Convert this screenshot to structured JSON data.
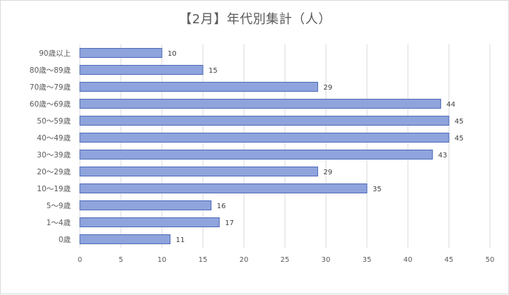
{
  "chart_data": {
    "type": "bar",
    "orientation": "horizontal",
    "title": "【2月】年代別集計（人）",
    "categories": [
      "90歳以上",
      "80歳～89歳",
      "70歳～79歳",
      "60歳～69歳",
      "50～59歳",
      "40～49歳",
      "30～39歳",
      "20～29歳",
      "10～19歳",
      "5～9歳",
      "1～4歳",
      "0歳"
    ],
    "values": [
      10,
      15,
      29,
      44,
      45,
      45,
      43,
      29,
      35,
      16,
      17,
      11
    ],
    "xlim": [
      0,
      50
    ],
    "xticks": [
      0,
      5,
      10,
      15,
      20,
      25,
      30,
      35,
      40,
      45,
      50
    ],
    "xlabel": "",
    "ylabel": "",
    "grid": "vertical",
    "legend": "none",
    "data_labels": true,
    "colors": {
      "bar_fill": "#8fa4dc",
      "bar_stroke": "#4a67b8",
      "grid": "#d9d9d9",
      "text": "#595959"
    }
  }
}
